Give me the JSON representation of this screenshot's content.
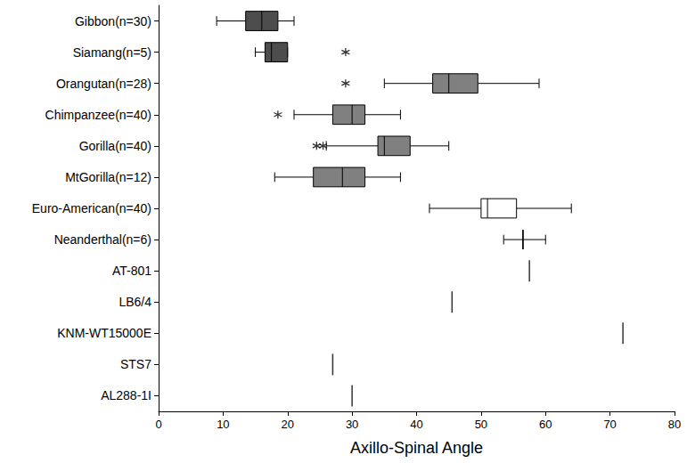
{
  "chart_data": {
    "type": "boxplot",
    "orientation": "horizontal",
    "x_label": "Axillo-Spinal Angle",
    "xlim": [
      0,
      80
    ],
    "xticks": [
      0,
      10,
      20,
      30,
      40,
      50,
      60,
      70,
      80
    ],
    "grid": false,
    "categories": [
      "Gibbon(n=30)",
      "Siamang(n=5)",
      "Orangutan(n=28)",
      "Chimpanzee(n=40)",
      "Gorilla(n=40)",
      "MtGorilla(n=12)",
      "Euro-American(n=40)",
      "Neanderthal(n=6)",
      "AT-801",
      "LB6/4",
      "KNM-WT15000E",
      "STS7",
      "AL288-1I"
    ],
    "series": [
      {
        "type": "boxplot",
        "values": [
          {
            "min": 9,
            "q1": 13.5,
            "median": 16,
            "q3": 18.5,
            "max": 21
          },
          {
            "min": 15,
            "q1": 16.5,
            "median": 17.5,
            "q3": 20,
            "max": 20
          },
          {
            "min": 35,
            "q1": 42.5,
            "median": 45,
            "q3": 49.5,
            "max": 59
          },
          {
            "min": 21,
            "q1": 27,
            "median": 30,
            "q3": 32,
            "max": 37.5
          },
          {
            "min": 26,
            "q1": 34,
            "median": 35,
            "q3": 39,
            "max": 45
          },
          {
            "min": 18,
            "q1": 24,
            "median": 28.5,
            "q3": 32,
            "max": 37.5
          },
          {
            "min": 42,
            "q1": 50,
            "median": 51,
            "q3": 55.5,
            "max": 64
          },
          {
            "min": 53.5,
            "q1": 56.5,
            "median": 56.5,
            "q3": 56.5,
            "max": 60
          },
          null,
          null,
          null,
          null,
          null
        ],
        "colors": [
          "#4d4d4d",
          "#4d4d4d",
          "#808080",
          "#808080",
          "#808080",
          "#808080",
          "#ffffff",
          "#ffffff",
          null,
          null,
          null,
          null,
          null
        ]
      },
      {
        "type": "scatter",
        "marker": "asterisk",
        "color": "#000000",
        "values": [
          null,
          [
            29
          ],
          [
            29
          ],
          [
            18.5
          ],
          [
            24.5,
            25.5
          ],
          null,
          null,
          null,
          null,
          null,
          null,
          null,
          null
        ]
      },
      {
        "type": "scatter",
        "marker": "vline",
        "color": "#000000",
        "values": [
          null,
          null,
          null,
          null,
          null,
          null,
          null,
          null,
          57.5,
          45.5,
          72,
          27,
          30
        ]
      }
    ]
  }
}
